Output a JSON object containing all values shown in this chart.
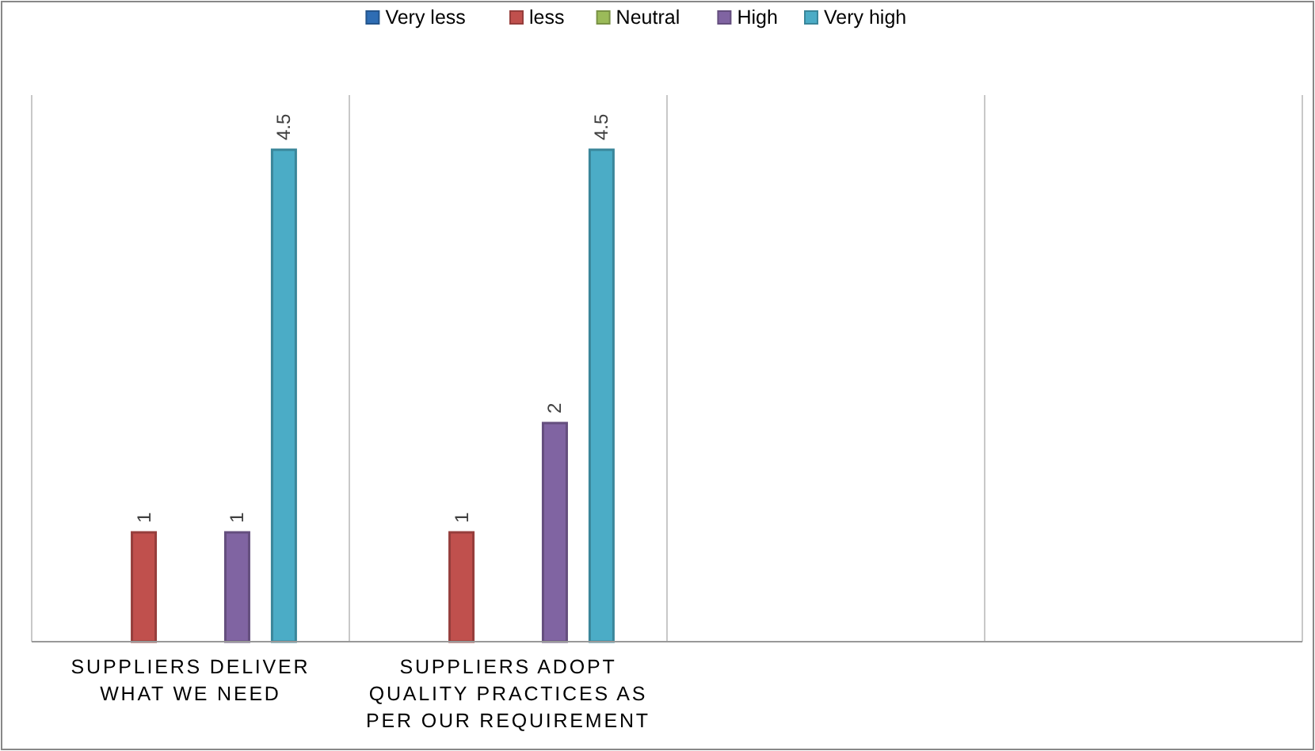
{
  "chart_data": {
    "type": "bar",
    "categories": [
      "SUPPLIERS DELIVER WHAT WE NEED",
      "SUPPLIERS ADOPT QUALITY PRACTICES AS PER OUR REQUIREMENT",
      null,
      null
    ],
    "series": [
      {
        "name": "Very less",
        "color": "#2e6db4",
        "values": [
          null,
          null,
          null,
          null
        ]
      },
      {
        "name": "less",
        "color": "#c0504d",
        "values": [
          1,
          1,
          null,
          null
        ]
      },
      {
        "name": "Neutral",
        "color": "#9bbb59",
        "values": [
          null,
          null,
          null,
          null
        ]
      },
      {
        "name": "High",
        "color": "#8064a2",
        "values": [
          1,
          2,
          null,
          null
        ]
      },
      {
        "name": "Very high",
        "color": "#4bacc6",
        "values": [
          4.5,
          4.5,
          null,
          null
        ]
      }
    ],
    "ylim": [
      0,
      5
    ],
    "tick_labels": "x",
    "grid": "x",
    "legend": "top",
    "data_labels": true
  }
}
